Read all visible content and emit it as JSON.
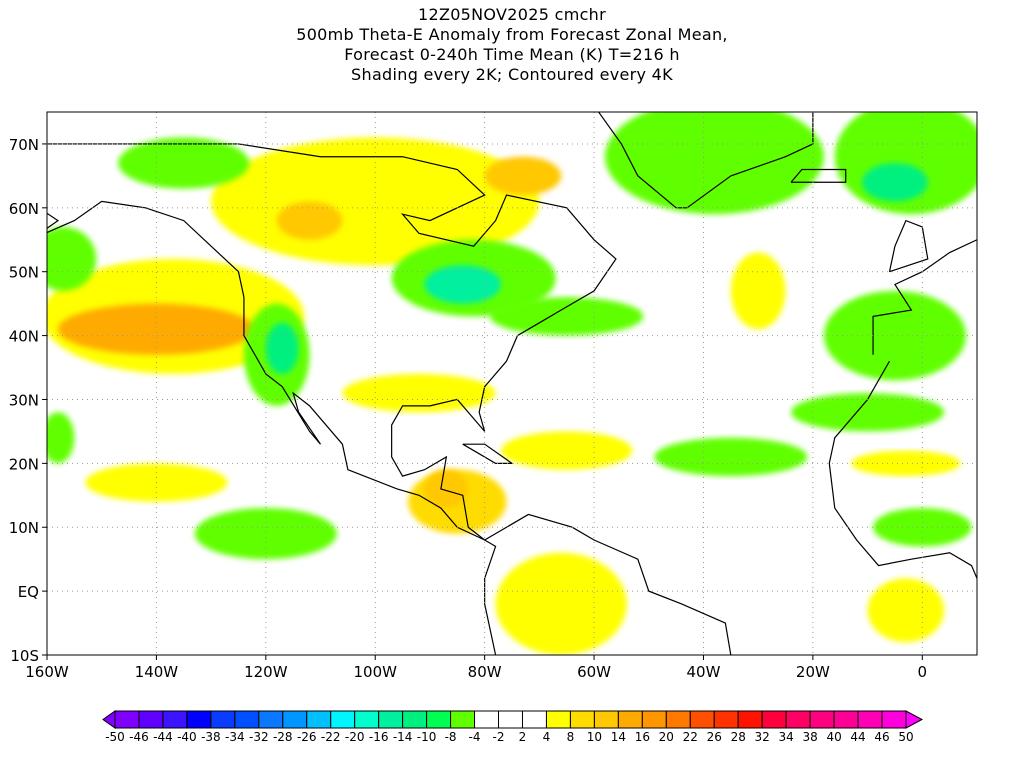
{
  "title": {
    "line1": "12Z05NOV2025 cmchr",
    "line2": "500mb Theta-E Anomaly from Forecast Zonal Mean,",
    "line3": "Forecast 0-240h Time Mean (K) T=216 h",
    "line4": "Shading every 2K; Contoured every 4K"
  },
  "chart_data": {
    "type": "heatmap",
    "projection": "cylindrical equidistant",
    "lon_range": [
      -160,
      10
    ],
    "lat_range": [
      -10,
      75
    ],
    "grid": true,
    "x_ticks": [
      {
        "value": -160,
        "label": "160W"
      },
      {
        "value": -140,
        "label": "140W"
      },
      {
        "value": -120,
        "label": "120W"
      },
      {
        "value": -100,
        "label": "100W"
      },
      {
        "value": -80,
        "label": "80W"
      },
      {
        "value": -60,
        "label": "60W"
      },
      {
        "value": -40,
        "label": "40W"
      },
      {
        "value": -20,
        "label": "20W"
      },
      {
        "value": 0,
        "label": "0"
      }
    ],
    "y_ticks": [
      {
        "value": 70,
        "label": "70N"
      },
      {
        "value": 60,
        "label": "60N"
      },
      {
        "value": 50,
        "label": "50N"
      },
      {
        "value": 40,
        "label": "40N"
      },
      {
        "value": 30,
        "label": "30N"
      },
      {
        "value": 20,
        "label": "20N"
      },
      {
        "value": 10,
        "label": "10N"
      },
      {
        "value": 0,
        "label": "EQ"
      },
      {
        "value": -10,
        "label": "10S"
      }
    ],
    "colorbar": {
      "labels": [
        "-50",
        "-46",
        "-44",
        "-40",
        "-38",
        "-34",
        "-32",
        "-28",
        "-26",
        "-22",
        "-20",
        "-16",
        "-14",
        "-10",
        "-8",
        "-4",
        "-2",
        "2",
        "4",
        "8",
        "10",
        "14",
        "16",
        "20",
        "22",
        "26",
        "28",
        "32",
        "34",
        "38",
        "40",
        "44",
        "46",
        "50"
      ],
      "colors": [
        "#7f00ff",
        "#6000ff",
        "#3c14ff",
        "#0000ff",
        "#0a3cff",
        "#0050ff",
        "#0a78ff",
        "#0096ff",
        "#00c0ff",
        "#00f5ff",
        "#00ffcc",
        "#00f0a0",
        "#00f080",
        "#00ff50",
        "#60ff00",
        "#ffffff",
        "#ffffff",
        "#ffffff",
        "#ffff00",
        "#ffdc00",
        "#ffc800",
        "#ffaa00",
        "#ff9600",
        "#ff7800",
        "#ff5000",
        "#ff3200",
        "#ff1400",
        "#ff003c",
        "#ff0064",
        "#ff0080",
        "#ff0096",
        "#ff00b4",
        "#ff00dc"
      ],
      "under_color": "#8000ff",
      "over_color": "#ff00ff"
    },
    "anomaly_regions": [
      {
        "name": "greenland",
        "lon": -38,
        "lat": 68,
        "rlon": 20,
        "rlat": 9,
        "value": -6
      },
      {
        "name": "ne-atlantic-arctic",
        "lon": -2,
        "lat": 68,
        "rlon": 14,
        "rlat": 9,
        "value": -6
      },
      {
        "name": "ne-atlantic-core",
        "lon": -5,
        "lat": 64,
        "rlon": 6,
        "rlat": 3,
        "value": -12
      },
      {
        "name": "north-pacific",
        "lon": -137,
        "lat": 43,
        "rlon": 24,
        "rlat": 9,
        "value": 6
      },
      {
        "name": "north-pacific-core",
        "lon": -140,
        "lat": 41,
        "rlon": 18,
        "rlat": 4,
        "value": 14
      },
      {
        "name": "canada",
        "lon": -100,
        "lat": 61,
        "rlon": 30,
        "rlat": 10,
        "value": 6
      },
      {
        "name": "canada-core-w",
        "lon": -112,
        "lat": 58,
        "rlon": 6,
        "rlat": 3,
        "value": 12
      },
      {
        "name": "canada-core-e",
        "lon": -73,
        "lat": 65,
        "rlon": 7,
        "rlat": 3,
        "value": 10
      },
      {
        "name": "alaska",
        "lon": -135,
        "lat": 67,
        "rlon": 12,
        "rlat": 4,
        "value": -6
      },
      {
        "name": "gulf-of-alaska",
        "lon": -157,
        "lat": 52,
        "rlon": 6,
        "rlat": 5,
        "value": -6
      },
      {
        "name": "great-lakes",
        "lon": -82,
        "lat": 49,
        "rlon": 15,
        "rlat": 6,
        "value": -8
      },
      {
        "name": "great-lakes-core",
        "lon": -84,
        "lat": 48,
        "rlon": 7,
        "rlat": 3,
        "value": -16
      },
      {
        "name": "nw-atlantic",
        "lon": -65,
        "lat": 43,
        "rlon": 14,
        "rlat": 3,
        "value": -6
      },
      {
        "name": "western-us",
        "lon": -118,
        "lat": 37,
        "rlon": 6,
        "rlat": 8,
        "value": -8
      },
      {
        "name": "western-us-core",
        "lon": -117,
        "lat": 38,
        "rlon": 3,
        "rlat": 4,
        "value": -14
      },
      {
        "name": "southern-us",
        "lon": -92,
        "lat": 31,
        "rlon": 14,
        "rlat": 3,
        "value": 6
      },
      {
        "name": "mid-atlantic",
        "lon": -30,
        "lat": 47,
        "rlon": 5,
        "rlat": 6,
        "value": 6
      },
      {
        "name": "iberia",
        "lon": -5,
        "lat": 40,
        "rlon": 13,
        "rlat": 7,
        "value": -8
      },
      {
        "name": "tropical-pacific",
        "lon": -120,
        "lat": 9,
        "rlon": 13,
        "rlat": 4,
        "value": -8
      },
      {
        "name": "subtropical-pacific",
        "lon": -140,
        "lat": 17,
        "rlon": 13,
        "rlat": 3,
        "value": 6
      },
      {
        "name": "caribbean",
        "lon": -65,
        "lat": 22,
        "rlon": 12,
        "rlat": 3,
        "value": 6
      },
      {
        "name": "central-america",
        "lon": -85,
        "lat": 14,
        "rlon": 9,
        "rlat": 5,
        "value": 8
      },
      {
        "name": "central-america-core",
        "lon": -87,
        "lat": 16,
        "rlon": 4,
        "rlat": 3,
        "value": 12
      },
      {
        "name": "south-america",
        "lon": -66,
        "lat": -2,
        "rlon": 12,
        "rlat": 8,
        "value": 6
      },
      {
        "name": "atlantic-tropics-1",
        "lon": -35,
        "lat": 21,
        "rlon": 14,
        "rlat": 3,
        "value": -6
      },
      {
        "name": "atlantic-tropics-2",
        "lon": -10,
        "lat": 28,
        "rlon": 14,
        "rlat": 3,
        "value": -6
      },
      {
        "name": "west-africa",
        "lon": 0,
        "lat": 10,
        "rlon": 9,
        "rlat": 3,
        "value": -6
      },
      {
        "name": "sahel",
        "lon": -3,
        "lat": 20,
        "rlon": 10,
        "rlat": 2,
        "value": 6
      },
      {
        "name": "gulf-of-guinea",
        "lon": -3,
        "lat": -3,
        "rlon": 7,
        "rlat": 5,
        "value": 6
      },
      {
        "name": "east-pacific-sw",
        "lon": -158,
        "lat": 24,
        "rlon": 3,
        "rlat": 4,
        "value": -6
      }
    ]
  }
}
